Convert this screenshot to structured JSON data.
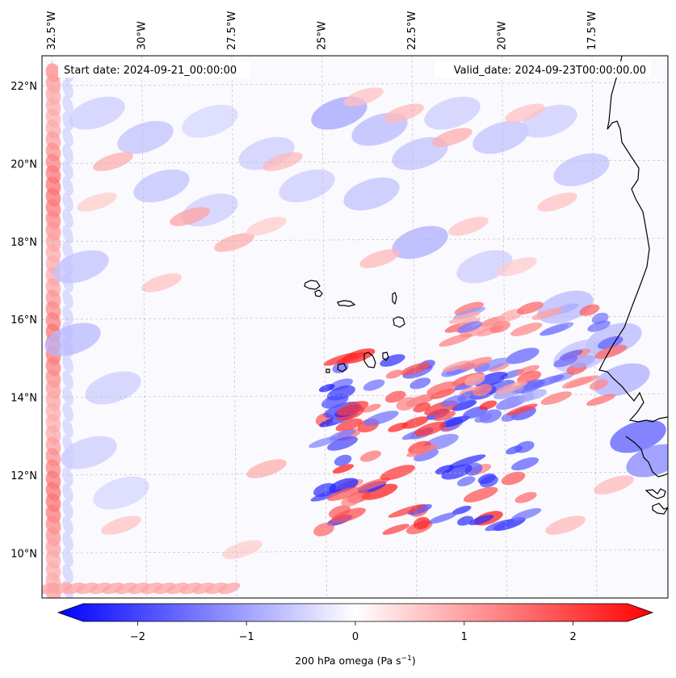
{
  "map": {
    "start_date_label": "Start date: 2024-09-21_00:00:00",
    "valid_date_label": "Valid_date: 2024-09-23T00:00:00.00",
    "colors": {
      "negative": "#0000ff",
      "zero": "#ffffff",
      "positive": "#ff0000",
      "coast": "#000000",
      "grid": "#b8b8b8"
    }
  },
  "longitude_labels": [
    {
      "value": -32.5,
      "text": "32.5°W"
    },
    {
      "value": -30.0,
      "text": "30°W"
    },
    {
      "value": -27.5,
      "text": "27.5°W"
    },
    {
      "value": -25.0,
      "text": "25°W"
    },
    {
      "value": -22.5,
      "text": "22.5°W"
    },
    {
      "value": -20.0,
      "text": "20°W"
    },
    {
      "value": -17.5,
      "text": "17.5°W"
    }
  ],
  "latitude_labels": [
    {
      "value": 22,
      "text": "22°N"
    },
    {
      "value": 20,
      "text": "20°N"
    },
    {
      "value": 18,
      "text": "18°N"
    },
    {
      "value": 16,
      "text": "16°N"
    },
    {
      "value": 14,
      "text": "14°N"
    },
    {
      "value": 12,
      "text": "12°N"
    },
    {
      "value": 10,
      "text": "10°N"
    }
  ],
  "colorbar": {
    "min": -2.75,
    "max": 2.75,
    "ticks": [
      {
        "value": -2,
        "text": "−2"
      },
      {
        "value": -1,
        "text": "−1"
      },
      {
        "value": 0,
        "text": "0"
      },
      {
        "value": 1,
        "text": "1"
      },
      {
        "value": 2,
        "text": "2"
      }
    ],
    "label": "200 hPa omega (Pa s",
    "label_exponent": "−1",
    "label_close": ")"
  },
  "chart_data": {
    "type": "heatmap",
    "title": "",
    "variable": "200 hPa omega (Pa s⁻¹)",
    "value_range": [
      -2.75,
      2.75
    ],
    "lon_range": [
      -32.7,
      -15.2
    ],
    "lat_range": [
      8.9,
      22.8
    ],
    "notable_regions": [
      {
        "description": "strong alternating ascent/descent banding",
        "lon_range": [
          -25,
          -19
        ],
        "lat_range": [
          11,
          14.5
        ],
        "value_range": [
          -2.2,
          2.2
        ]
      },
      {
        "description": "positive boundary strip",
        "lon": -32.5,
        "lat_range": [
          9,
          22.5
        ],
        "value": 1.3
      }
    ]
  }
}
